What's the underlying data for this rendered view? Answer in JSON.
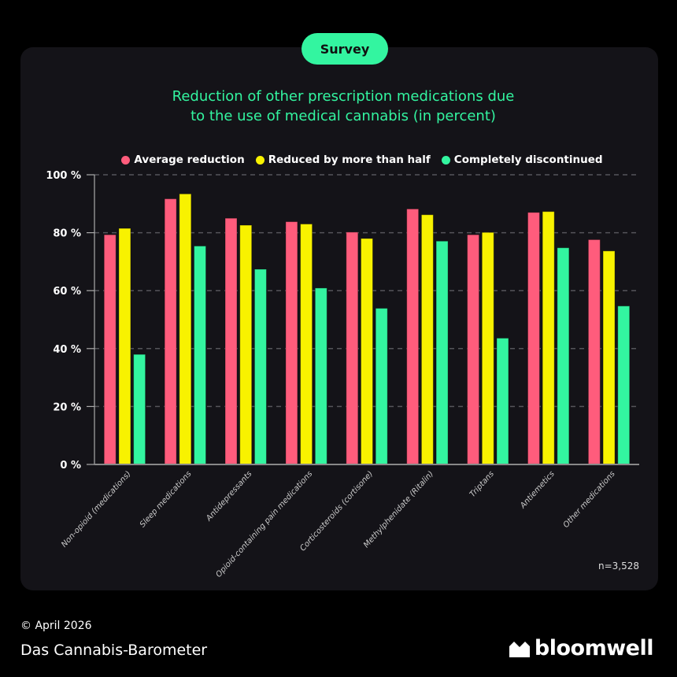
{
  "badge": "Survey",
  "footer": {
    "date": "© April 2026",
    "brand": "Das Cannabis-Barometer",
    "logo": "bloomwell"
  },
  "colors": {
    "pink": "#ff5c7c",
    "yellow": "#f8f200",
    "green": "#33f5a0",
    "card": "#141318"
  },
  "chart_data": {
    "type": "bar",
    "title_lines": [
      "Reduction of other prescription medications due",
      "to the use of medical cannabis (in percent)"
    ],
    "note": "n=3,528",
    "ylim": [
      0,
      100
    ],
    "yticks": [
      "0 %",
      "20 %",
      "40 %",
      "60 %",
      "80 %",
      "100 %"
    ],
    "grid": true,
    "legend_placement": "top",
    "categories": [
      "Non-opioid (medications)",
      "Sleep medications",
      "Antidepressants",
      "Opioid-containing pain medications",
      "Corticosteroids (cortisone)",
      "Methylphenidate (Ritalin)",
      "Triptans",
      "Antiemetics",
      "Other medications"
    ],
    "series": [
      {
        "name": "Average reduction",
        "color": "#ff5c7c",
        "values": [
          79.3,
          91.7,
          85.0,
          83.8,
          80.2,
          88.2,
          79.3,
          87.0,
          77.6
        ]
      },
      {
        "name": "Reduced by more than half",
        "color": "#f8f200",
        "values": [
          81.5,
          93.4,
          82.6,
          83.0,
          78.0,
          86.2,
          80.1,
          87.3,
          73.7
        ]
      },
      {
        "name": "Completely discontinued",
        "color": "#33f5a0",
        "values": [
          38.0,
          75.4,
          67.4,
          60.9,
          53.9,
          77.1,
          43.6,
          74.8,
          54.7
        ]
      }
    ]
  }
}
